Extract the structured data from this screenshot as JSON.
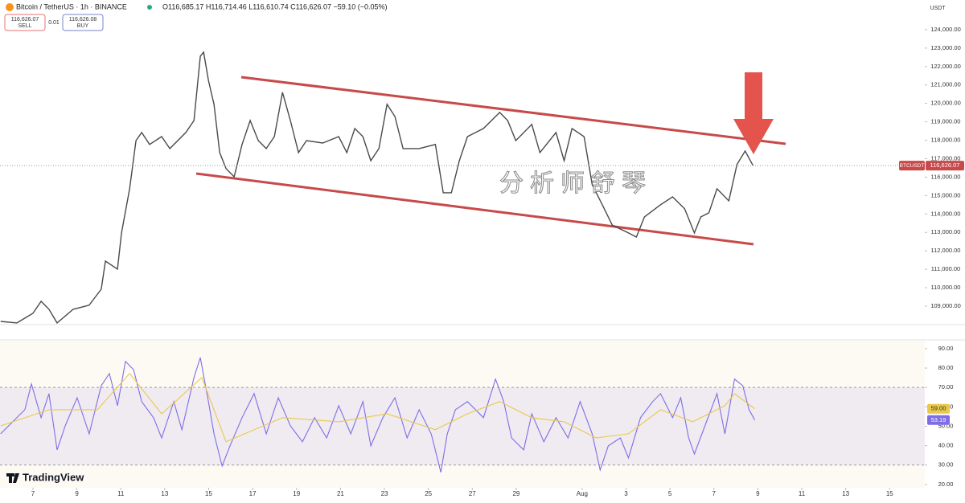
{
  "header": {
    "symbol": "Bitcoin / TetherUS · 1h · BINANCE",
    "ohlc": "O116,685.17 H116,714.46 L116,610.74 C116,626.07 −59.10 (−0.05%)",
    "sell_price": "116,626.07",
    "sell": "SELL",
    "spread": "0.01",
    "buy_price": "116,626.08",
    "buy": "BUY",
    "currency": "USDT",
    "brand": "TradingView"
  },
  "chart_data": [
    {
      "type": "line",
      "watermark": "分析师舒琴",
      "xlim": [
        -1.5,
        40.6
      ],
      "ylim": [
        108040,
        125610
      ],
      "yticks": [
        {
          "value": 109000,
          "label": "109,000.00"
        },
        {
          "value": 110000,
          "label": "110,000.00"
        },
        {
          "value": 111000,
          "label": "111,000.00"
        },
        {
          "value": 112000,
          "label": "112,000.00"
        },
        {
          "value": 113000,
          "label": "113,000.00"
        },
        {
          "value": 114000,
          "label": "114,000.00"
        },
        {
          "value": 115000,
          "label": "115,000.00"
        },
        {
          "value": 116000,
          "label": "116,000.00"
        },
        {
          "value": 117000,
          "label": "117,000.00"
        },
        {
          "value": 118000,
          "label": "118,000.00"
        },
        {
          "value": 119000,
          "label": "119,000.00"
        },
        {
          "value": 120000,
          "label": "120,000.00"
        },
        {
          "value": 121000,
          "label": "121,000.00"
        },
        {
          "value": 122000,
          "label": "122,000.00"
        },
        {
          "value": 123000,
          "label": "123,000.00"
        },
        {
          "value": 124000,
          "label": "124,000.00"
        }
      ],
      "last_price": {
        "value": 116626.07,
        "label": "116,626.07"
      },
      "series": [
        {
          "name": "BTCUSDT",
          "color": "#4a4a4a",
          "x": [
            -1.47,
            -0.73,
            0,
            0.37,
            0.73,
            1.1,
            1.83,
            2.56,
            3.11,
            3.3,
            3.85,
            4.03,
            4.4,
            4.69,
            4.95,
            5.31,
            5.86,
            6.23,
            6.96,
            7.33,
            7.62,
            7.77,
            7.99,
            8.24,
            8.5,
            8.79,
            9.16,
            9.52,
            9.89,
            10.26,
            10.62,
            10.99,
            11.36,
            11.72,
            12.09,
            12.45,
            13.19,
            13.92,
            14.29,
            14.65,
            15.02,
            15.38,
            15.75,
            16.12,
            16.48,
            16.85,
            17.58,
            18.32,
            18.68,
            19.05,
            19.41,
            19.78,
            20.51,
            21.25,
            21.61,
            21.98,
            22.71,
            23.08,
            23.81,
            24.18,
            24.54,
            25.09,
            25.46,
            26.01,
            26.37,
            27.11,
            27.47,
            27.84,
            28.57,
            29.12,
            29.67,
            30.11,
            30.4,
            30.77,
            31.14,
            31.68,
            32.05,
            32.42,
            32.78
          ],
          "values": [
            108170,
            108090,
            108610,
            109260,
            108830,
            108090,
            108830,
            109050,
            109920,
            111440,
            111010,
            112970,
            115370,
            117980,
            118420,
            117770,
            118200,
            117550,
            118420,
            119070,
            122560,
            122780,
            121250,
            119950,
            117330,
            116460,
            116020,
            117770,
            119070,
            117980,
            117550,
            118200,
            120600,
            119070,
            117330,
            117980,
            117850,
            118200,
            117330,
            118640,
            118200,
            116890,
            117550,
            119950,
            119290,
            117550,
            117550,
            117770,
            115150,
            115150,
            116890,
            118200,
            118640,
            119510,
            119070,
            117980,
            118860,
            117330,
            118420,
            116890,
            118640,
            118200,
            115590,
            114280,
            113400,
            112970,
            112750,
            113840,
            114500,
            114930,
            114280,
            112970,
            113840,
            114060,
            115370,
            114710,
            116680,
            117420,
            116626.07
          ]
        }
      ]
    },
    {
      "type": "line",
      "xlim": [
        -1.5,
        40.6
      ],
      "ylim": [
        18.3,
        94.1
      ],
      "band": [
        30,
        70
      ],
      "yticks": [
        {
          "value": 20,
          "label": "20.00"
        },
        {
          "value": 30,
          "label": "30.00"
        },
        {
          "value": 40,
          "label": "40.00"
        },
        {
          "value": 50,
          "label": "50.00"
        },
        {
          "value": 60,
          "label": "60.00"
        },
        {
          "value": 70,
          "label": "70.00"
        },
        {
          "value": 80,
          "label": "80.00"
        },
        {
          "value": 90,
          "label": "90.00"
        }
      ],
      "xticks": [
        {
          "value": 0,
          "label": "7"
        },
        {
          "value": 2,
          "label": "9"
        },
        {
          "value": 4,
          "label": "11"
        },
        {
          "value": 6,
          "label": "13"
        },
        {
          "value": 8,
          "label": "15"
        },
        {
          "value": 10,
          "label": "17"
        },
        {
          "value": 12,
          "label": "19"
        },
        {
          "value": 14,
          "label": "21"
        },
        {
          "value": 16,
          "label": "23"
        },
        {
          "value": 18,
          "label": "25"
        },
        {
          "value": 20,
          "label": "27"
        },
        {
          "value": 22,
          "label": "29"
        },
        {
          "value": 25,
          "label": "Aug"
        },
        {
          "value": 27,
          "label": "3"
        },
        {
          "value": 29,
          "label": "5"
        },
        {
          "value": 31,
          "label": "7"
        },
        {
          "value": 33,
          "label": "9"
        },
        {
          "value": 35,
          "label": "11"
        },
        {
          "value": 37,
          "label": "13"
        },
        {
          "value": 39,
          "label": "15"
        }
      ],
      "series": [
        {
          "color": "#7e6ee6",
          "last_label": "53.19",
          "x": [
            -1.47,
            -0.92,
            -0.37,
            -0.07,
            0.37,
            0.73,
            1.1,
            1.47,
            2.01,
            2.56,
            3.11,
            3.48,
            3.85,
            4.21,
            4.58,
            4.95,
            5.49,
            5.86,
            6.41,
            6.78,
            7.33,
            7.62,
            7.99,
            8.24,
            8.61,
            8.97,
            9.52,
            10.07,
            10.62,
            11.17,
            11.72,
            12.27,
            12.82,
            13.37,
            13.92,
            14.47,
            15.02,
            15.38,
            15.93,
            16.48,
            17.03,
            17.58,
            18.13,
            18.57,
            18.86,
            19.23,
            19.78,
            20.51,
            21.06,
            21.43,
            21.79,
            22.34,
            22.71,
            23.26,
            23.81,
            24.36,
            24.91,
            25.46,
            25.82,
            26.19,
            26.74,
            27.11,
            27.66,
            28.21,
            28.57,
            29.12,
            29.49,
            29.85,
            30.11,
            30.59,
            31.14,
            31.5,
            31.94,
            32.31,
            32.6,
            32.86
          ],
          "values": [
            46.1,
            52.3,
            58.5,
            71.8,
            54.4,
            66.8,
            37.8,
            50.2,
            64.7,
            46.1,
            70.9,
            77.2,
            60.6,
            83.4,
            79.2,
            62.7,
            54.4,
            44.0,
            62.7,
            48.2,
            75.1,
            85.4,
            62.7,
            46.1,
            29.5,
            39.9,
            54.4,
            66.8,
            46.1,
            64.7,
            50.2,
            42.0,
            54.4,
            44.0,
            60.6,
            46.1,
            62.7,
            39.9,
            54.4,
            64.7,
            44.0,
            58.5,
            46.1,
            26.2,
            46.1,
            58.5,
            62.7,
            54.4,
            74.3,
            62.7,
            44.0,
            37.8,
            56.4,
            42.0,
            54.4,
            44.0,
            62.7,
            46.1,
            27.4,
            39.9,
            44.0,
            33.7,
            54.4,
            62.7,
            66.8,
            54.4,
            64.7,
            44.0,
            35.7,
            50.2,
            66.8,
            46.1,
            74.3,
            70.9,
            58.5,
            53.19
          ]
        },
        {
          "color": "#e8c94a",
          "last_label": "59.00",
          "x": [
            -1.47,
            0.73,
            2.93,
            4.4,
            5.86,
            7.69,
            8.79,
            11.36,
            13.92,
            16.12,
            18.32,
            19.78,
            21.25,
            22.71,
            24.18,
            25.64,
            27.11,
            28.57,
            30.04,
            31.5,
            31.94,
            32.86
          ],
          "values": [
            50.2,
            58.5,
            58.5,
            77.2,
            56.4,
            75.1,
            42.0,
            54.4,
            52.3,
            56.4,
            48.2,
            56.4,
            62.7,
            54.4,
            52.3,
            44.0,
            46.1,
            58.5,
            52.3,
            60.6,
            66.8,
            59.0
          ]
        }
      ]
    }
  ]
}
